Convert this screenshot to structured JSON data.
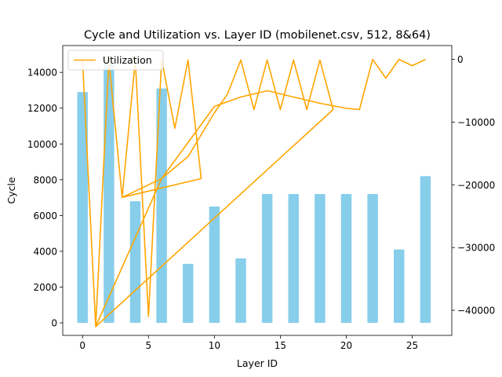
{
  "chart_data": {
    "type": "bar+line",
    "title": "Cycle and Utilization vs. Layer ID (mobilenet.csv, 512, 8&64)",
    "xlabel": "Layer ID",
    "ylabel": "Cycle",
    "y2label": "",
    "xlim": [
      -1.5,
      28.0
    ],
    "ylim": [
      -700,
      15500
    ],
    "y2lim": [
      -44000,
      2200
    ],
    "xticks": [
      0,
      5,
      10,
      15,
      20,
      25
    ],
    "yticks": [
      0,
      2000,
      4000,
      6000,
      8000,
      10000,
      12000,
      14000
    ],
    "y2ticks": [
      0,
      -10000,
      -20000,
      -30000,
      -40000
    ],
    "legend": {
      "position": "top-left",
      "entries": [
        "Utilization"
      ]
    },
    "bar_color": "#87ceeb",
    "line_color": "#ffa500",
    "bar_width": 0.8,
    "bars": {
      "x": [
        0,
        2,
        4,
        6,
        8,
        10,
        12,
        14,
        16,
        18,
        20,
        22,
        24,
        26
      ],
      "values": [
        12900,
        14500,
        6800,
        13100,
        3300,
        6500,
        3600,
        7200,
        7200,
        7200,
        7200,
        7200,
        4100,
        8200
      ]
    },
    "series": [
      {
        "name": "Utilization",
        "axis": "right",
        "x": [
          0,
          1,
          2,
          3,
          4,
          5,
          6,
          7,
          8,
          9,
          3,
          4,
          5,
          6,
          8,
          10,
          11,
          12,
          13,
          14,
          15,
          16,
          17,
          18,
          19,
          1,
          6,
          10,
          12,
          14,
          16,
          18,
          20,
          21,
          22,
          23,
          24,
          25,
          26
        ],
        "values": [
          0,
          -42600,
          -100,
          -22000,
          -100,
          -41000,
          0,
          -11000,
          -100,
          -19000,
          -22000,
          -21000,
          -20000,
          -19000,
          -15500,
          -8500,
          -5500,
          -100,
          -8000,
          -100,
          -8000,
          -100,
          -8000,
          -100,
          -8000,
          -42600,
          -19000,
          -7500,
          -6000,
          -5000,
          -6000,
          -7000,
          -7800,
          -8000,
          0,
          -3000,
          0,
          -1000,
          0
        ]
      }
    ]
  }
}
